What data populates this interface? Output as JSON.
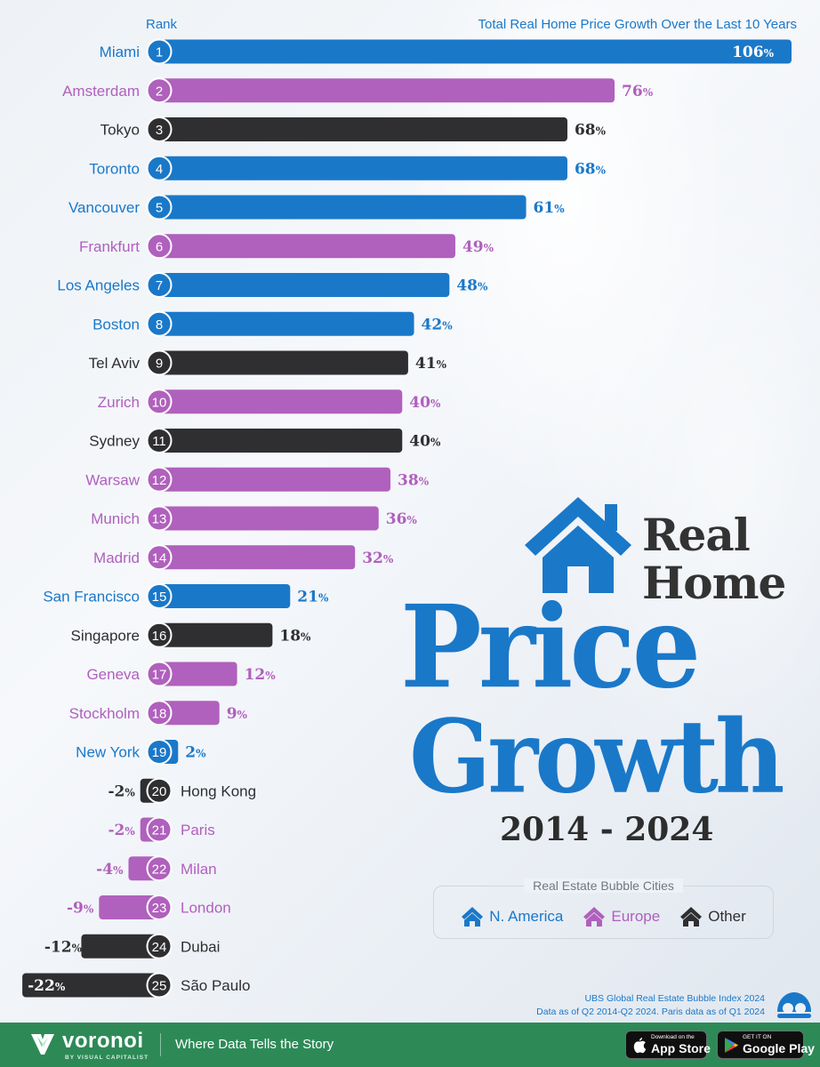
{
  "chart_data": {
    "type": "bar",
    "orientation": "horizontal",
    "rank_header": "Rank",
    "value_header": "Total Real Home Price Growth Over the Last 10 Years",
    "value_suffix": "%",
    "xlim": [
      -22,
      106
    ],
    "series_colors": {
      "N. America": "#1a78c9",
      "Europe": "#b060bd",
      "Other": "#2f2f31"
    },
    "bars": [
      {
        "rank": "1",
        "city": "Miami",
        "value": 106,
        "group": "N. America"
      },
      {
        "rank": "2",
        "city": "Amsterdam",
        "value": 76,
        "group": "Europe"
      },
      {
        "rank": "3",
        "city": "Tokyo",
        "value": 68,
        "group": "Other"
      },
      {
        "rank": "4",
        "city": "Toronto",
        "value": 68,
        "group": "N. America"
      },
      {
        "rank": "5",
        "city": "Vancouver",
        "value": 61,
        "group": "N. America"
      },
      {
        "rank": "6",
        "city": "Frankfurt",
        "value": 49,
        "group": "Europe"
      },
      {
        "rank": "7",
        "city": "Los Angeles",
        "value": 48,
        "group": "N. America"
      },
      {
        "rank": "8",
        "city": "Boston",
        "value": 42,
        "group": "N. America"
      },
      {
        "rank": "9",
        "city": "Tel Aviv",
        "value": 41,
        "group": "Other"
      },
      {
        "rank": "10",
        "city": "Zurich",
        "value": 40,
        "group": "Europe"
      },
      {
        "rank": "11",
        "city": "Sydney",
        "value": 40,
        "group": "Other"
      },
      {
        "rank": "12",
        "city": "Warsaw",
        "value": 38,
        "group": "Europe"
      },
      {
        "rank": "13",
        "city": "Munich",
        "value": 36,
        "group": "Europe"
      },
      {
        "rank": "14",
        "city": "Madrid",
        "value": 32,
        "group": "Europe"
      },
      {
        "rank": "15",
        "city": "San Francisco",
        "value": 21,
        "group": "N. America"
      },
      {
        "rank": "16",
        "city": "Singapore",
        "value": 18,
        "group": "Other"
      },
      {
        "rank": "17",
        "city": "Geneva",
        "value": 12,
        "group": "Europe"
      },
      {
        "rank": "18",
        "city": "Stockholm",
        "value": 9,
        "group": "Europe"
      },
      {
        "rank": "19",
        "city": "New York",
        "value": 2,
        "group": "N. America"
      },
      {
        "rank": "20",
        "city": "Hong Kong",
        "value": -2,
        "group": "Other"
      },
      {
        "rank": "21",
        "city": "Paris",
        "value": -2,
        "group": "Europe"
      },
      {
        "rank": "22",
        "city": "Milan",
        "value": -4,
        "group": "Europe"
      },
      {
        "rank": "23",
        "city": "London",
        "value": -9,
        "group": "Europe"
      },
      {
        "rank": "24",
        "city": "Dubai",
        "value": -12,
        "group": "Other"
      },
      {
        "rank": "25",
        "city": "São Paulo",
        "value": -22,
        "group": "Other"
      }
    ]
  },
  "title": {
    "line1": "Real",
    "line2": "Home",
    "line3": "Price",
    "line4": "Growth",
    "years": "2014 - 2024"
  },
  "legend": {
    "title": "Real Estate Bubble Cities",
    "items": [
      {
        "label": "N. America",
        "color": "#1a78c9",
        "icon": "house-icon"
      },
      {
        "label": "Europe",
        "color": "#b060bd",
        "icon": "house-icon"
      },
      {
        "label": "Other",
        "color": "#2f2f31",
        "icon": "house-icon"
      }
    ]
  },
  "source": {
    "line1": "UBS Global Real Estate Bubble Index 2024",
    "line2": "Data as of Q2 2014-Q2 2024. Paris data as of Q1 2024"
  },
  "footer": {
    "brand": "voronoi",
    "brand_sub": "BY VISUAL CAPITALIST",
    "tagline": "Where Data Tells the Story",
    "app_store_small": "Download on the",
    "app_store_big": "App Store",
    "google_play_small": "GET IT ON",
    "google_play_big": "Google Play",
    "color": "#2d8a57"
  }
}
